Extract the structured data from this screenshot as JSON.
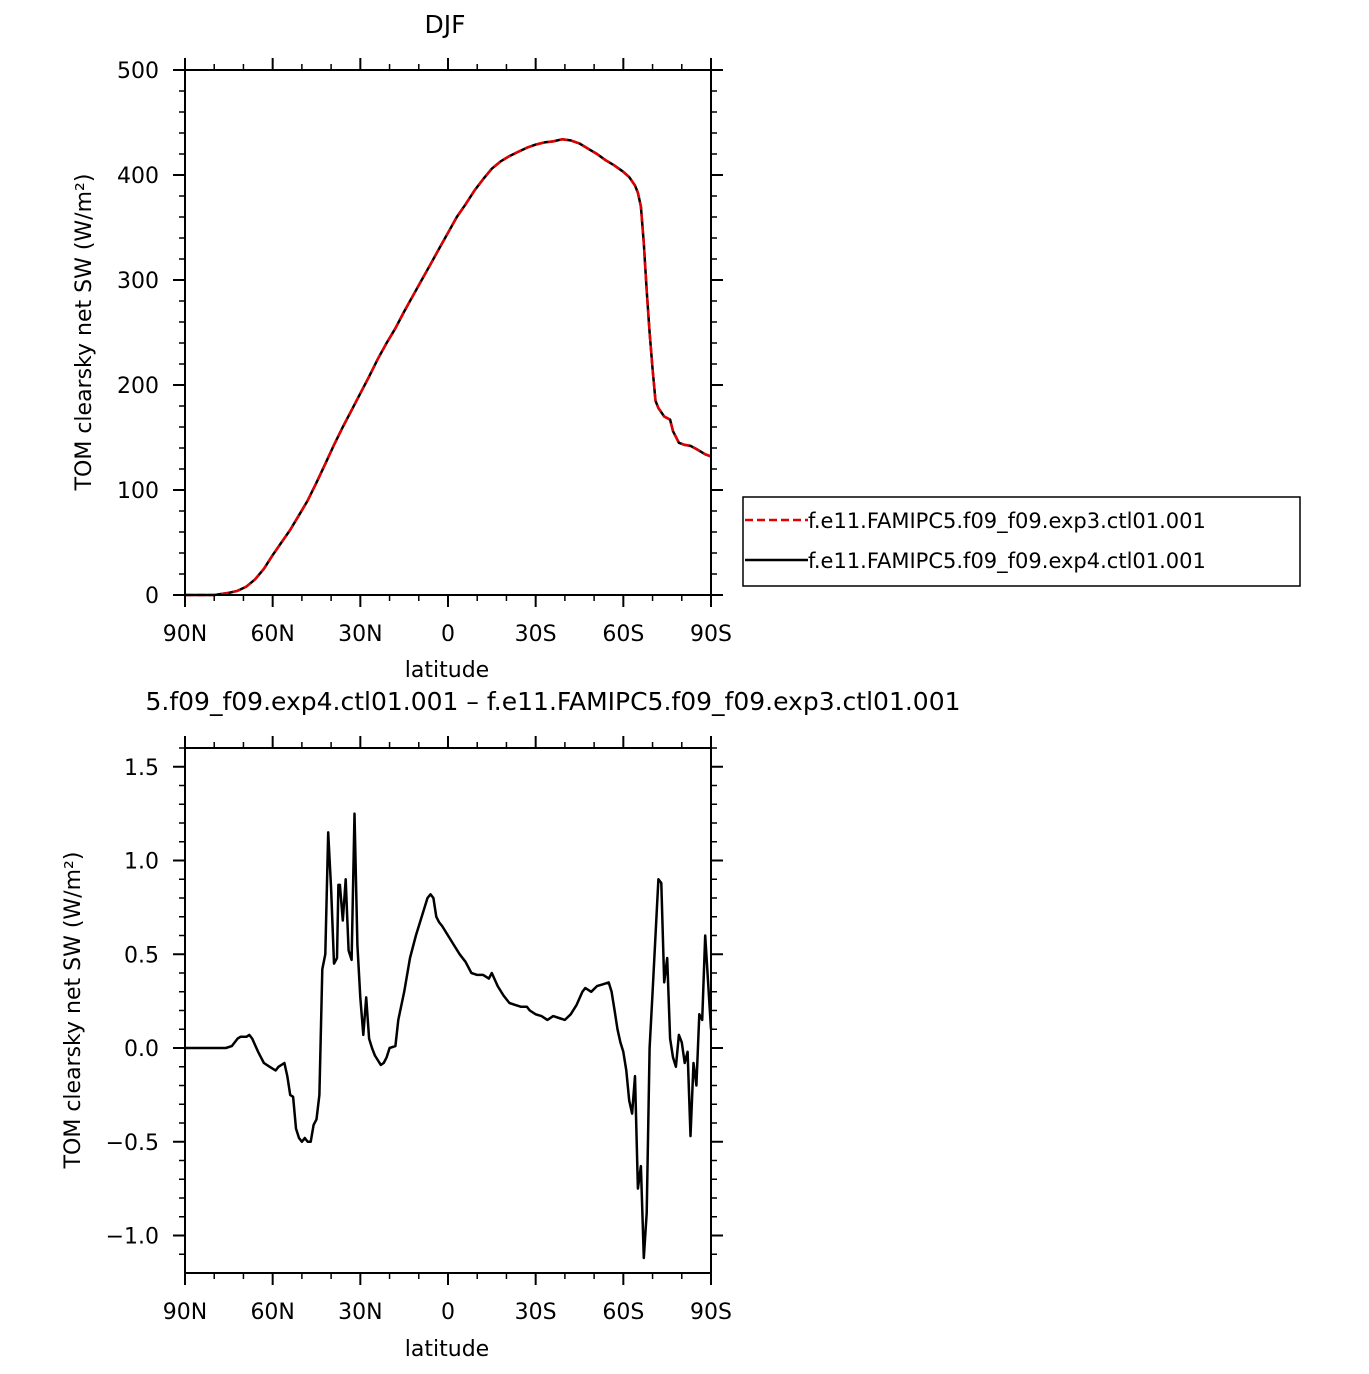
{
  "chart_data": [
    {
      "type": "line",
      "title": "DJF",
      "xlabel": "latitude",
      "ylabel": "TOM clearsky net SW (W/m²)",
      "x_ticks": [
        90,
        60,
        30,
        0,
        -30,
        -60,
        -90
      ],
      "x_tick_labels": [
        "90N",
        "60N",
        "30N",
        "0",
        "30S",
        "60S",
        "90S"
      ],
      "xlim": [
        90,
        -90
      ],
      "ylim": [
        0,
        500
      ],
      "y_ticks": [
        0,
        100,
        200,
        300,
        400,
        500
      ],
      "y_tick_labels": [
        "0",
        "100",
        "200",
        "300",
        "400",
        "500"
      ],
      "grid": false,
      "legend_position": "right",
      "x": [
        90,
        80,
        75,
        72,
        69,
        66,
        63,
        60,
        57,
        54,
        51,
        48,
        45,
        42,
        39,
        36,
        33,
        30,
        27,
        24,
        21,
        18,
        15,
        12,
        9,
        6,
        3,
        0,
        -3,
        -6,
        -9,
        -12,
        -15,
        -18,
        -21,
        -24,
        -27,
        -30,
        -33,
        -36,
        -39,
        -42,
        -45,
        -48,
        -51,
        -54,
        -57,
        -60,
        -62,
        -64,
        -65,
        -66,
        -67,
        -68,
        -69,
        -70,
        -71,
        -72,
        -74,
        -76,
        -77,
        -79,
        -81,
        -83,
        -85,
        -88,
        -90
      ],
      "series": [
        {
          "name": "f.e11.FAMIPC5.f09_f09.exp3.ctl01.001",
          "color": "#e00000",
          "dash": "dashed",
          "y": [
            0,
            0,
            2,
            4,
            8,
            15,
            25,
            38,
            50,
            62,
            76,
            90,
            107,
            125,
            143,
            160,
            176,
            192,
            208,
            225,
            240,
            254,
            270,
            285,
            300,
            315,
            330,
            345,
            360,
            372,
            385,
            396,
            406,
            413,
            418,
            422,
            426,
            429,
            431,
            432,
            434,
            433,
            430,
            425,
            420,
            414,
            409,
            403,
            398,
            390,
            383,
            370,
            335,
            290,
            250,
            215,
            185,
            178,
            170,
            167,
            156,
            145,
            143,
            142,
            139,
            134,
            132
          ]
        },
        {
          "name": "f.e11.FAMIPC5.f09_f09.exp4.ctl01.001",
          "color": "#000000",
          "dash": "solid",
          "y": [
            0,
            0,
            2,
            4,
            8,
            15,
            25,
            38,
            50,
            62,
            76,
            90,
            107,
            125,
            143,
            160,
            176,
            192,
            208,
            225,
            240,
            254,
            270,
            285,
            300,
            315,
            330,
            345,
            360,
            372,
            385,
            396,
            406,
            413,
            418,
            422,
            426,
            429,
            431,
            432,
            434,
            433,
            430,
            425,
            420,
            414,
            409,
            403,
            398,
            390,
            383,
            370,
            335,
            290,
            250,
            215,
            185,
            178,
            170,
            167,
            156,
            145,
            143,
            142,
            139,
            134,
            132
          ]
        }
      ]
    },
    {
      "type": "line",
      "title": "5.f09_f09.exp4.ctl01.001 – f.e11.FAMIPC5.f09_f09.exp3.ctl01.001",
      "xlabel": "latitude",
      "ylabel": "TOM clearsky net SW (W/m²)",
      "x_ticks": [
        90,
        60,
        30,
        0,
        -30,
        -60,
        -90
      ],
      "x_tick_labels": [
        "90N",
        "60N",
        "30N",
        "0",
        "30S",
        "60S",
        "90S"
      ],
      "xlim": [
        90,
        -90
      ],
      "ylim": [
        -1.2,
        1.6
      ],
      "y_ticks": [
        -1.0,
        -0.5,
        0.0,
        0.5,
        1.0,
        1.5
      ],
      "y_tick_labels": [
        "−1.0",
        "−0.5",
        "0.0",
        "0.5",
        "1.0",
        "1.5"
      ],
      "grid": false,
      "series": [
        {
          "color": "#000000",
          "x": [
            90,
            84,
            79,
            76,
            74,
            72,
            71,
            69,
            68,
            67,
            65,
            64,
            63,
            61,
            59,
            58,
            56,
            55,
            54,
            53,
            52,
            51,
            50,
            49,
            48,
            47,
            46,
            45,
            44,
            43,
            42,
            41,
            40,
            39,
            38,
            37.5,
            37,
            36,
            35,
            34.5,
            34,
            33,
            32,
            31,
            30,
            29,
            28,
            27,
            26,
            25,
            23,
            22,
            21,
            20,
            18,
            17,
            15,
            13,
            11,
            9,
            8,
            7,
            6,
            5,
            4,
            3,
            2,
            0,
            -2,
            -4,
            -6,
            -8,
            -10,
            -12,
            -14,
            -15,
            -17,
            -19,
            -21,
            -23,
            -25,
            -27,
            -28,
            -30,
            -32,
            -34,
            -36,
            -38,
            -40,
            -42,
            -44,
            -46,
            -47,
            -49,
            -51,
            -53,
            -55,
            -56,
            -57,
            -58,
            -59,
            -60,
            -61,
            -62,
            -63,
            -64,
            -65,
            -66,
            -67,
            -68,
            -69,
            -70,
            -71,
            -72,
            -73,
            -74,
            -75,
            -76,
            -77,
            -78,
            -79,
            -80,
            -81,
            -82,
            -83,
            -84,
            -85,
            -86,
            -87,
            -88,
            -89,
            -90
          ],
          "y": [
            0,
            0,
            0,
            0,
            0.01,
            0.05,
            0.06,
            0.06,
            0.07,
            0.05,
            -0.02,
            -0.05,
            -0.08,
            -0.1,
            -0.12,
            -0.1,
            -0.08,
            -0.15,
            -0.25,
            -0.26,
            -0.43,
            -0.48,
            -0.5,
            -0.48,
            -0.5,
            -0.5,
            -0.41,
            -0.38,
            -0.25,
            0.42,
            0.5,
            1.15,
            0.85,
            0.45,
            0.48,
            0.87,
            0.87,
            0.68,
            0.9,
            0.7,
            0.52,
            0.47,
            1.25,
            0.55,
            0.27,
            0.07,
            0.27,
            0.05,
            0,
            -0.04,
            -0.09,
            -0.08,
            -0.05,
            0,
            0.01,
            0.15,
            0.3,
            0.48,
            0.6,
            0.7,
            0.75,
            0.8,
            0.82,
            0.8,
            0.7,
            0.67,
            0.65,
            0.6,
            0.55,
            0.5,
            0.46,
            0.4,
            0.39,
            0.39,
            0.37,
            0.4,
            0.33,
            0.28,
            0.24,
            0.23,
            0.22,
            0.22,
            0.2,
            0.18,
            0.17,
            0.15,
            0.17,
            0.16,
            0.15,
            0.18,
            0.23,
            0.3,
            0.32,
            0.3,
            0.33,
            0.34,
            0.35,
            0.3,
            0.2,
            0.1,
            0.03,
            -0.02,
            -0.12,
            -0.28,
            -0.35,
            -0.15,
            -0.75,
            -0.63,
            -1.12,
            -0.88,
            0,
            0.3,
            0.6,
            0.9,
            0.88,
            0.35,
            0.48,
            0.05,
            -0.05,
            -0.1,
            0.07,
            0.03,
            -0.08,
            -0.02,
            -0.47,
            -0.08,
            -0.2,
            0.18,
            0.15,
            0.6,
            0.35,
            0.1
          ]
        }
      ]
    }
  ]
}
